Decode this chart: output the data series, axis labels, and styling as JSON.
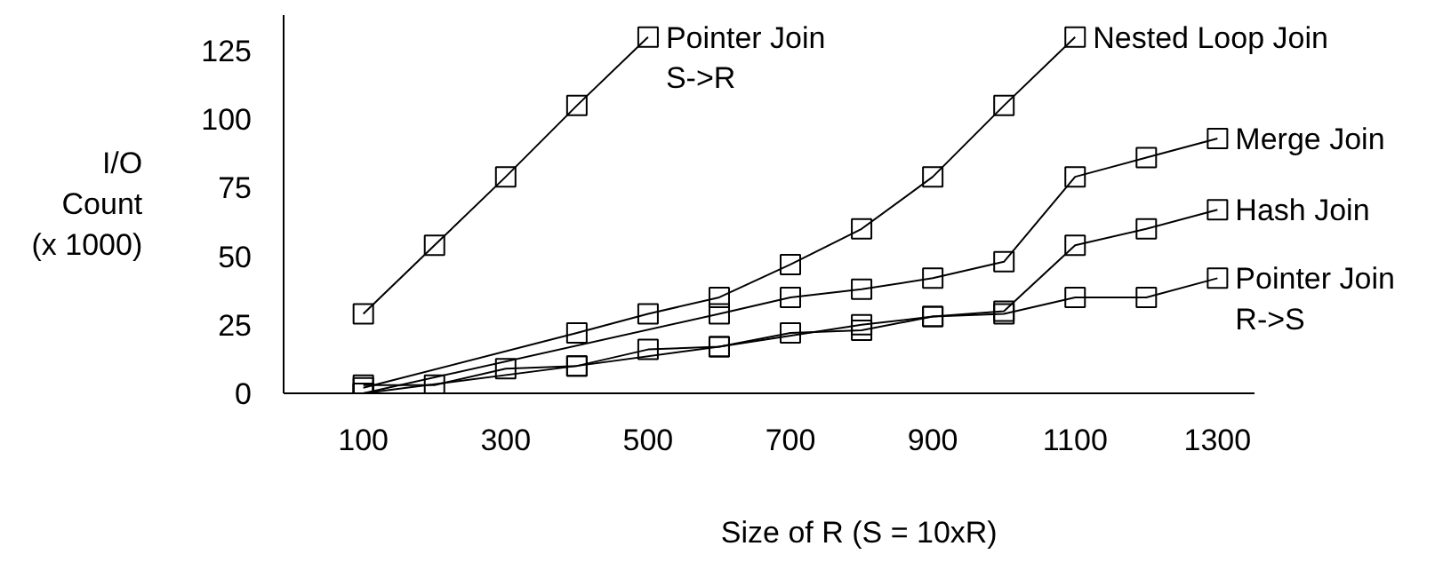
{
  "chart_data": {
    "type": "line",
    "xlabel": "Size of R  (S = 10xR)",
    "ylabel": "I/O\nCount\n(x 1000)",
    "xlim": [
      -12,
      1352
    ],
    "ylim": [
      0,
      138
    ],
    "xticks": [
      100,
      300,
      500,
      700,
      900,
      1100,
      1300
    ],
    "yticks": [
      0,
      25,
      50,
      75,
      100,
      125
    ],
    "grid": false,
    "legend": false,
    "marker": "square",
    "line_style": "solid",
    "series": [
      {
        "name": "Pointer Join\nS->R",
        "color": "#000000",
        "x": [
          100,
          200,
          300,
          400,
          500
        ],
        "values": [
          29,
          54,
          79,
          105,
          130
        ]
      },
      {
        "name": "Nested Loop Join",
        "color": "#000000",
        "x": [
          100,
          400,
          500,
          600,
          700,
          800,
          900,
          1000,
          1100
        ],
        "values": [
          2,
          22,
          29,
          35,
          47,
          60,
          79,
          105,
          130
        ]
      },
      {
        "name": "Merge Join",
        "color": "#000000",
        "x": [
          100,
          600,
          700,
          800,
          900,
          1000,
          1100,
          1200,
          1300
        ],
        "values": [
          0,
          29,
          35,
          38,
          42,
          48,
          79,
          86,
          93
        ]
      },
      {
        "name": "Hash Join",
        "color": "#000000",
        "x": [
          100,
          400,
          600,
          800,
          900,
          1000,
          1100,
          1200,
          1300
        ],
        "values": [
          0,
          10,
          17,
          25,
          28,
          30,
          54,
          60,
          67
        ]
      },
      {
        "name": "Pointer Join\nR->S",
        "color": "#000000",
        "x": [
          100,
          200,
          300,
          400,
          500,
          600,
          700,
          800,
          900,
          1000,
          1100,
          1200,
          1300
        ],
        "values": [
          3,
          3,
          9,
          10,
          16,
          17,
          22,
          23,
          28,
          29,
          35,
          35,
          42
        ]
      }
    ]
  }
}
